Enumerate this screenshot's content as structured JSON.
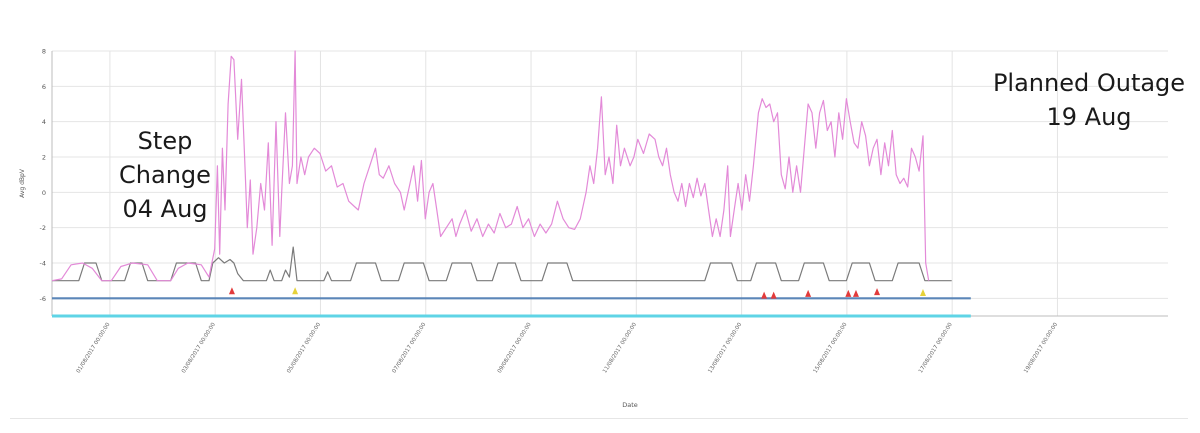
{
  "chart_data": {
    "type": "line",
    "xlabel": "Date",
    "ylabel": "Avg dBpV",
    "ylim": [
      -7,
      8
    ],
    "y_ticks": [
      8,
      6,
      4,
      2,
      0,
      -2,
      -4,
      -6
    ],
    "x_tick_labels": [
      "01/08/2017 00:00:00",
      "03/08/2017 00:00:00",
      "05/08/2017 00:00:00",
      "07/08/2017 00:00:00",
      "09/08/2017 00:00:00",
      "11/08/2017 00:00:00",
      "13/08/2017 00:00:00",
      "15/08/2017 00:00:00",
      "17/08/2017 00:00:00",
      "19/08/2017 00:00:00"
    ],
    "grid": true,
    "colors": {
      "pink": "#e38ad8",
      "gray": "#7a7a7a",
      "blue": "#5b86b8",
      "cyan": "#5fd4e6",
      "red": "#e23b3b",
      "yellow": "#e6d23a"
    },
    "series": [
      {
        "color": "pink",
        "points": [
          [
            0,
            -5
          ],
          [
            0.25,
            -4.9
          ],
          [
            0.5,
            -4.1
          ],
          [
            0.8,
            -4
          ],
          [
            1.05,
            -4.3
          ],
          [
            1.3,
            -5
          ],
          [
            1.55,
            -5
          ],
          [
            1.8,
            -4.2
          ],
          [
            2.1,
            -4
          ],
          [
            2.5,
            -4.1
          ],
          [
            2.75,
            -5
          ],
          [
            3.1,
            -5
          ],
          [
            3.3,
            -4.3
          ],
          [
            3.55,
            -4
          ],
          [
            3.9,
            -4.1
          ],
          [
            4.1,
            -4.8
          ],
          [
            4.25,
            -3.2
          ],
          [
            4.32,
            1.5
          ],
          [
            4.38,
            -3.5
          ],
          [
            4.45,
            2.5
          ],
          [
            4.52,
            -1
          ],
          [
            4.6,
            5
          ],
          [
            4.68,
            7.7
          ],
          [
            4.75,
            7.5
          ],
          [
            4.85,
            3
          ],
          [
            4.95,
            6.4
          ],
          [
            5.05,
            1
          ],
          [
            5.1,
            -2
          ],
          [
            5.18,
            0.7
          ],
          [
            5.25,
            -3.5
          ],
          [
            5.35,
            -2
          ],
          [
            5.45,
            0.5
          ],
          [
            5.55,
            -1
          ],
          [
            5.65,
            2.8
          ],
          [
            5.75,
            -3
          ],
          [
            5.85,
            4
          ],
          [
            5.95,
            -2.5
          ],
          [
            6,
            0
          ],
          [
            6.1,
            4.5
          ],
          [
            6.2,
            0.5
          ],
          [
            6.28,
            1.5
          ],
          [
            6.35,
            8
          ],
          [
            6.4,
            0.5
          ],
          [
            6.5,
            2
          ],
          [
            6.6,
            1
          ],
          [
            6.7,
            2
          ],
          [
            6.85,
            2.5
          ],
          [
            7,
            2.2
          ],
          [
            7.15,
            1.2
          ],
          [
            7.3,
            1.5
          ],
          [
            7.45,
            0.3
          ],
          [
            7.6,
            0.5
          ],
          [
            7.75,
            -0.5
          ],
          [
            7.9,
            -0.8
          ],
          [
            8,
            -1
          ],
          [
            8.15,
            0.5
          ],
          [
            8.3,
            1.5
          ],
          [
            8.45,
            2.5
          ],
          [
            8.55,
            1
          ],
          [
            8.65,
            0.8
          ],
          [
            8.8,
            1.5
          ],
          [
            8.95,
            0.5
          ],
          [
            9.1,
            0
          ],
          [
            9.2,
            -1
          ],
          [
            9.35,
            0.5
          ],
          [
            9.45,
            1.5
          ],
          [
            9.55,
            -0.5
          ],
          [
            9.65,
            1.8
          ],
          [
            9.75,
            -1.5
          ],
          [
            9.85,
            0
          ],
          [
            9.95,
            0.5
          ],
          [
            10.05,
            -1
          ],
          [
            10.15,
            -2.5
          ],
          [
            10.3,
            -2
          ],
          [
            10.45,
            -1.5
          ],
          [
            10.55,
            -2.5
          ],
          [
            10.65,
            -1.8
          ],
          [
            10.8,
            -1
          ],
          [
            10.95,
            -2.2
          ],
          [
            11.1,
            -1.5
          ],
          [
            11.25,
            -2.5
          ],
          [
            11.4,
            -1.8
          ],
          [
            11.55,
            -2.3
          ],
          [
            11.7,
            -1.2
          ],
          [
            11.85,
            -2
          ],
          [
            12,
            -1.8
          ],
          [
            12.15,
            -0.8
          ],
          [
            12.3,
            -2
          ],
          [
            12.45,
            -1.5
          ],
          [
            12.6,
            -2.5
          ],
          [
            12.75,
            -1.8
          ],
          [
            12.9,
            -2.3
          ],
          [
            13.05,
            -1.8
          ],
          [
            13.2,
            -0.5
          ],
          [
            13.35,
            -1.5
          ],
          [
            13.5,
            -2
          ],
          [
            13.65,
            -2.1
          ],
          [
            13.8,
            -1.5
          ],
          [
            13.95,
            0
          ],
          [
            14.05,
            1.5
          ],
          [
            14.15,
            0.5
          ],
          [
            14.25,
            2.5
          ],
          [
            14.35,
            5.4
          ],
          [
            14.45,
            1
          ],
          [
            14.55,
            2
          ],
          [
            14.65,
            0.5
          ],
          [
            14.75,
            3.8
          ],
          [
            14.85,
            1.5
          ],
          [
            14.95,
            2.5
          ],
          [
            15.1,
            1.5
          ],
          [
            15.2,
            2
          ],
          [
            15.3,
            3
          ],
          [
            15.45,
            2.2
          ],
          [
            15.6,
            3.3
          ],
          [
            15.75,
            3
          ],
          [
            15.85,
            2
          ],
          [
            15.95,
            1.5
          ],
          [
            16.05,
            2.5
          ],
          [
            16.15,
            1
          ],
          [
            16.25,
            0
          ],
          [
            16.35,
            -0.5
          ],
          [
            16.45,
            0.5
          ],
          [
            16.55,
            -0.8
          ],
          [
            16.65,
            0.5
          ],
          [
            16.75,
            -0.3
          ],
          [
            16.85,
            0.8
          ],
          [
            16.95,
            -0.2
          ],
          [
            17.05,
            0.5
          ],
          [
            17.15,
            -1
          ],
          [
            17.25,
            -2.5
          ],
          [
            17.35,
            -1.5
          ],
          [
            17.45,
            -2.5
          ],
          [
            17.55,
            -1
          ],
          [
            17.65,
            1.5
          ],
          [
            17.72,
            -2.5
          ],
          [
            17.82,
            -1
          ],
          [
            17.92,
            0.5
          ],
          [
            18.02,
            -1
          ],
          [
            18.12,
            1
          ],
          [
            18.22,
            -0.5
          ],
          [
            18.32,
            1.5
          ],
          [
            18.45,
            4.5
          ],
          [
            18.55,
            5.3
          ],
          [
            18.65,
            4.8
          ],
          [
            18.75,
            5
          ],
          [
            18.85,
            4
          ],
          [
            18.95,
            4.5
          ],
          [
            19.05,
            1
          ],
          [
            19.15,
            0.2
          ],
          [
            19.25,
            2
          ],
          [
            19.35,
            0
          ],
          [
            19.45,
            1.5
          ],
          [
            19.55,
            0
          ],
          [
            19.65,
            2.5
          ],
          [
            19.75,
            5
          ],
          [
            19.85,
            4.5
          ],
          [
            19.95,
            2.5
          ],
          [
            20.05,
            4.5
          ],
          [
            20.15,
            5.2
          ],
          [
            20.25,
            3.5
          ],
          [
            20.35,
            4
          ],
          [
            20.45,
            2
          ],
          [
            20.55,
            4.5
          ],
          [
            20.65,
            3
          ],
          [
            20.75,
            5.3
          ],
          [
            20.85,
            4
          ],
          [
            20.95,
            2.8
          ],
          [
            21.05,
            2.5
          ],
          [
            21.15,
            4
          ],
          [
            21.25,
            3.2
          ],
          [
            21.35,
            1.5
          ],
          [
            21.45,
            2.5
          ],
          [
            21.55,
            3
          ],
          [
            21.65,
            1
          ],
          [
            21.75,
            2.8
          ],
          [
            21.85,
            1.5
          ],
          [
            21.95,
            3.5
          ],
          [
            22.05,
            1
          ],
          [
            22.15,
            0.5
          ],
          [
            22.25,
            0.8
          ],
          [
            22.35,
            0.3
          ],
          [
            22.45,
            2.5
          ],
          [
            22.55,
            2
          ],
          [
            22.65,
            1.2
          ],
          [
            22.75,
            3.2
          ],
          [
            22.82,
            -4
          ],
          [
            22.9,
            -5
          ]
        ]
      },
      {
        "color": "gray",
        "points": [
          [
            0,
            -5
          ],
          [
            0.7,
            -5
          ],
          [
            0.85,
            -4
          ],
          [
            1.15,
            -4
          ],
          [
            1.3,
            -5
          ],
          [
            1.9,
            -5
          ],
          [
            2.05,
            -4
          ],
          [
            2.35,
            -4
          ],
          [
            2.5,
            -5
          ],
          [
            3.1,
            -5
          ],
          [
            3.25,
            -4
          ],
          [
            3.75,
            -4
          ],
          [
            3.9,
            -5
          ],
          [
            4.1,
            -5
          ],
          [
            4.2,
            -4
          ],
          [
            4.35,
            -3.7
          ],
          [
            4.5,
            -4
          ],
          [
            4.65,
            -3.8
          ],
          [
            4.75,
            -4
          ],
          [
            4.85,
            -4.6
          ],
          [
            5.0,
            -5
          ],
          [
            5.6,
            -5
          ],
          [
            5.7,
            -4.4
          ],
          [
            5.8,
            -5
          ],
          [
            6.0,
            -5
          ],
          [
            6.1,
            -4.4
          ],
          [
            6.2,
            -4.8
          ],
          [
            6.3,
            -3.1
          ],
          [
            6.4,
            -5
          ],
          [
            7.1,
            -5
          ],
          [
            7.2,
            -4.5
          ],
          [
            7.3,
            -5
          ],
          [
            7.8,
            -5
          ],
          [
            7.95,
            -4
          ],
          [
            8.45,
            -4
          ],
          [
            8.6,
            -5
          ],
          [
            9.05,
            -5
          ],
          [
            9.2,
            -4
          ],
          [
            9.7,
            -4
          ],
          [
            9.85,
            -5
          ],
          [
            10.3,
            -5
          ],
          [
            10.45,
            -4
          ],
          [
            10.95,
            -4
          ],
          [
            11.1,
            -5
          ],
          [
            11.5,
            -5
          ],
          [
            11.65,
            -4
          ],
          [
            12.1,
            -4
          ],
          [
            12.25,
            -5
          ],
          [
            12.8,
            -5
          ],
          [
            12.95,
            -4
          ],
          [
            13.45,
            -4
          ],
          [
            13.6,
            -5
          ],
          [
            17.05,
            -5
          ],
          [
            17.2,
            -4
          ],
          [
            17.75,
            -4
          ],
          [
            17.9,
            -5
          ],
          [
            18.25,
            -5
          ],
          [
            18.4,
            -4
          ],
          [
            18.9,
            -4
          ],
          [
            19.05,
            -5
          ],
          [
            19.5,
            -5
          ],
          [
            19.65,
            -4
          ],
          [
            20.15,
            -4
          ],
          [
            20.3,
            -5
          ],
          [
            20.75,
            -5
          ],
          [
            20.9,
            -4
          ],
          [
            21.35,
            -4
          ],
          [
            21.5,
            -5
          ],
          [
            21.95,
            -5
          ],
          [
            22.1,
            -4
          ],
          [
            22.65,
            -4
          ],
          [
            22.8,
            -5
          ],
          [
            23.5,
            -5
          ]
        ]
      },
      {
        "color": "blue",
        "points": [
          [
            0,
            -6
          ],
          [
            24,
            -6
          ]
        ]
      },
      {
        "color": "cyan",
        "points": [
          [
            0,
            -7
          ],
          [
            24,
            -7
          ]
        ]
      }
    ],
    "markers": [
      {
        "color": "red",
        "x": 4.7,
        "y": -5.6
      },
      {
        "color": "yellow",
        "x": 6.35,
        "y": -5.6
      },
      {
        "color": "red",
        "x": 18.6,
        "y": -5.85
      },
      {
        "color": "red",
        "x": 18.85,
        "y": -5.85
      },
      {
        "color": "red",
        "x": 19.75,
        "y": -5.75
      },
      {
        "color": "red",
        "x": 20.8,
        "y": -5.75
      },
      {
        "color": "red",
        "x": 21.0,
        "y": -5.75
      },
      {
        "color": "red",
        "x": 21.55,
        "y": -5.65
      },
      {
        "color": "yellow",
        "x": 22.75,
        "y": -5.7
      }
    ]
  },
  "annotations": {
    "step_change": [
      "Step",
      "Change",
      "04 Aug"
    ],
    "planned_outage": [
      "Planned Outage",
      "19 Aug"
    ]
  }
}
